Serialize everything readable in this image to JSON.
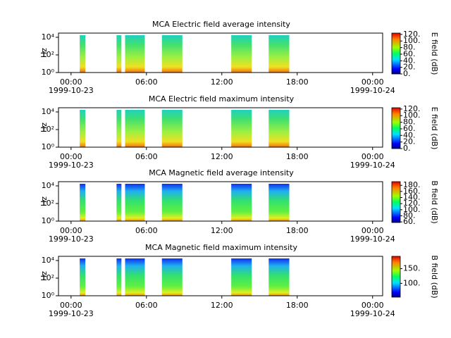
{
  "chart_data": [
    {
      "type": "spectrogram",
      "title": "MCA  Electric field average intensity",
      "ylabel": "Hz",
      "log_y": true,
      "ylim": [
        1,
        30000
      ],
      "yticks": [
        {
          "value": 1,
          "label": "10⁰"
        },
        {
          "value": 100,
          "label": "10²"
        },
        {
          "value": 10000,
          "label": "10⁴"
        }
      ],
      "xlim": [
        -1,
        24.8
      ],
      "xticks": [
        {
          "value": 0,
          "label": "00:00",
          "date": "1999-10-23"
        },
        {
          "value": 6,
          "label": "06:00"
        },
        {
          "value": 12,
          "label": "12:00"
        },
        {
          "value": 18,
          "label": "18:00"
        },
        {
          "value": 24,
          "label": "00:00",
          "date": "1999-10-24"
        }
      ],
      "segments": [
        [
          0.69,
          1.14
        ],
        [
          3.62,
          4.01
        ],
        [
          4.3,
          5.87
        ],
        [
          7.23,
          8.86
        ],
        [
          12.75,
          14.38
        ],
        [
          15.73,
          17.37
        ]
      ],
      "colorbar_label": "E field (dB)",
      "clim": [
        0,
        124
      ],
      "cticks": [
        {
          "value": 0,
          "label": "0."
        },
        {
          "value": 20,
          "label": "20."
        },
        {
          "value": 40,
          "label": "40."
        },
        {
          "value": 60,
          "label": "60."
        },
        {
          "value": 80,
          "label": "80."
        },
        {
          "value": 100,
          "label": "100."
        },
        {
          "value": 120,
          "label": "120."
        }
      ]
    },
    {
      "type": "spectrogram",
      "title": "MCA  Electric field maximum intensity",
      "ylabel": "Hz",
      "log_y": true,
      "ylim": [
        1,
        30000
      ],
      "yticks": [
        {
          "value": 1,
          "label": "10⁰"
        },
        {
          "value": 100,
          "label": "10²"
        },
        {
          "value": 10000,
          "label": "10⁴"
        }
      ],
      "xlim": [
        -1,
        24.8
      ],
      "xticks": [
        {
          "value": 0,
          "label": "00:00",
          "date": "1999-10-23"
        },
        {
          "value": 6,
          "label": "06:00"
        },
        {
          "value": 12,
          "label": "12:00"
        },
        {
          "value": 18,
          "label": "18:00"
        },
        {
          "value": 24,
          "label": "00:00",
          "date": "1999-10-24"
        }
      ],
      "segments": [
        [
          0.69,
          1.14
        ],
        [
          3.62,
          4.01
        ],
        [
          4.3,
          5.87
        ],
        [
          7.23,
          8.86
        ],
        [
          12.75,
          14.38
        ],
        [
          15.73,
          17.37
        ]
      ],
      "colorbar_label": "E field (dB)",
      "clim": [
        0,
        124
      ],
      "cticks": [
        {
          "value": 0,
          "label": "0."
        },
        {
          "value": 20,
          "label": "20."
        },
        {
          "value": 40,
          "label": "40."
        },
        {
          "value": 60,
          "label": "60."
        },
        {
          "value": 80,
          "label": "80."
        },
        {
          "value": 100,
          "label": "100."
        },
        {
          "value": 120,
          "label": "120."
        }
      ]
    },
    {
      "type": "spectrogram",
      "title": "MCA  Magnetic field average intensity",
      "ylabel": "Hz",
      "log_y": true,
      "ylim": [
        1,
        30000
      ],
      "yticks": [
        {
          "value": 1,
          "label": "10⁰"
        },
        {
          "value": 100,
          "label": "10²"
        },
        {
          "value": 10000,
          "label": "10⁴"
        }
      ],
      "xlim": [
        -1,
        24.8
      ],
      "xticks": [
        {
          "value": 0,
          "label": "00:00",
          "date": "1999-10-23"
        },
        {
          "value": 6,
          "label": "06:00"
        },
        {
          "value": 12,
          "label": "12:00"
        },
        {
          "value": 18,
          "label": "18:00"
        },
        {
          "value": 24,
          "label": "00:00",
          "date": "1999-10-24"
        }
      ],
      "segments": [
        [
          0.69,
          1.14
        ],
        [
          3.62,
          4.01
        ],
        [
          4.3,
          5.87
        ],
        [
          7.23,
          8.86
        ],
        [
          12.75,
          14.38
        ],
        [
          15.73,
          17.37
        ]
      ],
      "colorbar_label": "B field (dB)",
      "clim": [
        58,
        192
      ],
      "cticks": [
        {
          "value": 60,
          "label": "60."
        },
        {
          "value": 80,
          "label": "80."
        },
        {
          "value": 100,
          "label": "100."
        },
        {
          "value": 120,
          "label": "120."
        },
        {
          "value": 140,
          "label": "140."
        },
        {
          "value": 160,
          "label": "160."
        },
        {
          "value": 180,
          "label": "180."
        }
      ]
    },
    {
      "type": "spectrogram",
      "title": "MCA  Magnetic field maximum intensity",
      "ylabel": "Hz",
      "log_y": true,
      "ylim": [
        1,
        30000
      ],
      "yticks": [
        {
          "value": 1,
          "label": "10⁰"
        },
        {
          "value": 100,
          "label": "10²"
        },
        {
          "value": 10000,
          "label": "10⁴"
        }
      ],
      "xlim": [
        -1,
        24.8
      ],
      "xticks": [
        {
          "value": 0,
          "label": "00:00",
          "date": "1999-10-23"
        },
        {
          "value": 6,
          "label": "06:00"
        },
        {
          "value": 12,
          "label": "12:00"
        },
        {
          "value": 18,
          "label": "18:00"
        },
        {
          "value": 24,
          "label": "00:00",
          "date": "1999-10-24"
        }
      ],
      "segments": [
        [
          0.69,
          1.14
        ],
        [
          3.62,
          4.01
        ],
        [
          4.3,
          5.87
        ],
        [
          7.23,
          8.86
        ],
        [
          12.75,
          14.38
        ],
        [
          15.73,
          17.37
        ]
      ],
      "colorbar_label": "B field (dB)",
      "clim": [
        53,
        192
      ],
      "cticks": [
        {
          "value": 100,
          "label": "100."
        },
        {
          "value": 150,
          "label": "150."
        }
      ]
    }
  ]
}
